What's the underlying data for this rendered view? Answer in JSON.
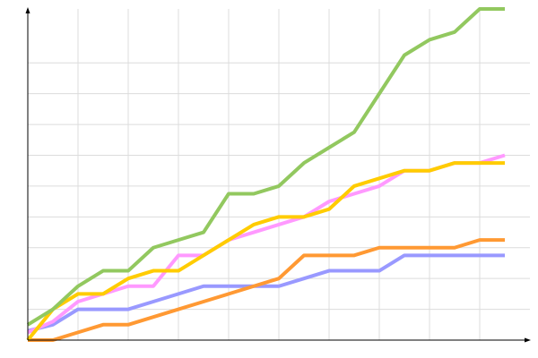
{
  "chart_data": {
    "type": "line",
    "x": [
      0,
      1,
      2,
      3,
      4,
      5,
      6,
      7,
      8,
      9,
      10,
      11,
      12,
      13,
      14,
      15,
      16,
      17,
      18,
      19
    ],
    "xlim": [
      0,
      20
    ],
    "xticks": [
      2,
      4,
      6,
      8,
      10,
      12,
      14,
      16,
      18
    ],
    "ylim": [
      0,
      10.75
    ],
    "yticks": [
      1,
      2,
      3,
      4,
      5,
      6,
      7,
      8,
      9
    ],
    "grid": true,
    "series": [
      {
        "color": "#9999ff",
        "values": [
          0.3,
          0.5,
          1,
          1,
          1,
          1.25,
          1.5,
          1.75,
          1.75,
          1.75,
          1.75,
          2,
          2.25,
          2.25,
          2.25,
          2.75,
          2.75,
          2.75,
          2.75,
          2.75
        ]
      },
      {
        "color": "#ff9933",
        "values": [
          0,
          0,
          0.25,
          0.5,
          0.5,
          0.75,
          1,
          1.25,
          1.5,
          1.75,
          2,
          2.75,
          2.75,
          2.75,
          3,
          3,
          3,
          3,
          3.25,
          3.25
        ]
      },
      {
        "color": "#ff99ff",
        "values": [
          0.25,
          0.6,
          1.25,
          1.5,
          1.75,
          1.75,
          2.75,
          2.75,
          3.25,
          3.5,
          3.75,
          4,
          4.5,
          4.75,
          5,
          5.5,
          5.5,
          5.75,
          5.75,
          6
        ]
      },
      {
        "color": "#ffcc00",
        "values": [
          0,
          1,
          1.5,
          1.5,
          2,
          2.25,
          2.25,
          2.75,
          3.25,
          3.75,
          4,
          4,
          4.25,
          5,
          5.25,
          5.5,
          5.5,
          5.75,
          5.75,
          5.75
        ]
      },
      {
        "color": "#92c85f",
        "values": [
          0.5,
          1,
          1.75,
          2.25,
          2.25,
          3,
          3.25,
          3.5,
          4.75,
          4.75,
          5,
          5.75,
          6.25,
          6.75,
          8,
          9.25,
          9.75,
          10,
          10.75,
          10.75
        ]
      }
    ]
  }
}
